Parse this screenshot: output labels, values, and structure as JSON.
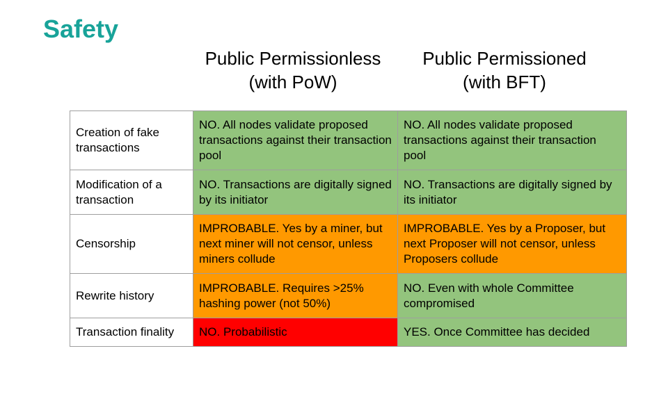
{
  "title": "Safety",
  "columns": [
    {
      "line1": "Public Permissionless",
      "line2": "(with PoW)"
    },
    {
      "line1": "Public Permissioned",
      "line2": "(with BFT)"
    }
  ],
  "colors": {
    "title": "#18a399",
    "green": "#93c47d",
    "orange": "#ff9900",
    "red": "#ff0000",
    "border": "#9e9e9e"
  },
  "rows": [
    {
      "label": "Creation of fake transactions",
      "cells": [
        {
          "text": "NO. All nodes validate proposed transactions against their transaction pool",
          "color": "#93c47d"
        },
        {
          "text": "NO. All nodes validate proposed transactions against their transaction pool",
          "color": "#93c47d"
        }
      ]
    },
    {
      "label": "Modification of a transaction",
      "cells": [
        {
          "text": "NO. Transactions are digitally signed by its initiator",
          "color": "#93c47d"
        },
        {
          "text": "NO. Transactions are digitally signed by its initiator",
          "color": "#93c47d"
        }
      ]
    },
    {
      "label": "Censorship",
      "cells": [
        {
          "text": "IMPROBABLE. Yes by a miner, but next miner will not censor, unless miners collude",
          "color": "#ff9900"
        },
        {
          "text": "IMPROBABLE. Yes by a Proposer, but next Proposer will not censor, unless Proposers collude",
          "color": "#ff9900"
        }
      ]
    },
    {
      "label": "Rewrite history",
      "cells": [
        {
          "text": "IMPROBABLE. Requires >25% hashing power (not 50%)",
          "color": "#ff9900"
        },
        {
          "text": "NO. Even with whole Committee compromised",
          "color": "#93c47d"
        }
      ]
    },
    {
      "label": "Transaction finality",
      "cells": [
        {
          "text": "NO. Probabilistic",
          "color": "#ff0000"
        },
        {
          "text": "YES. Once Committee has decided",
          "color": "#93c47d"
        }
      ]
    }
  ]
}
